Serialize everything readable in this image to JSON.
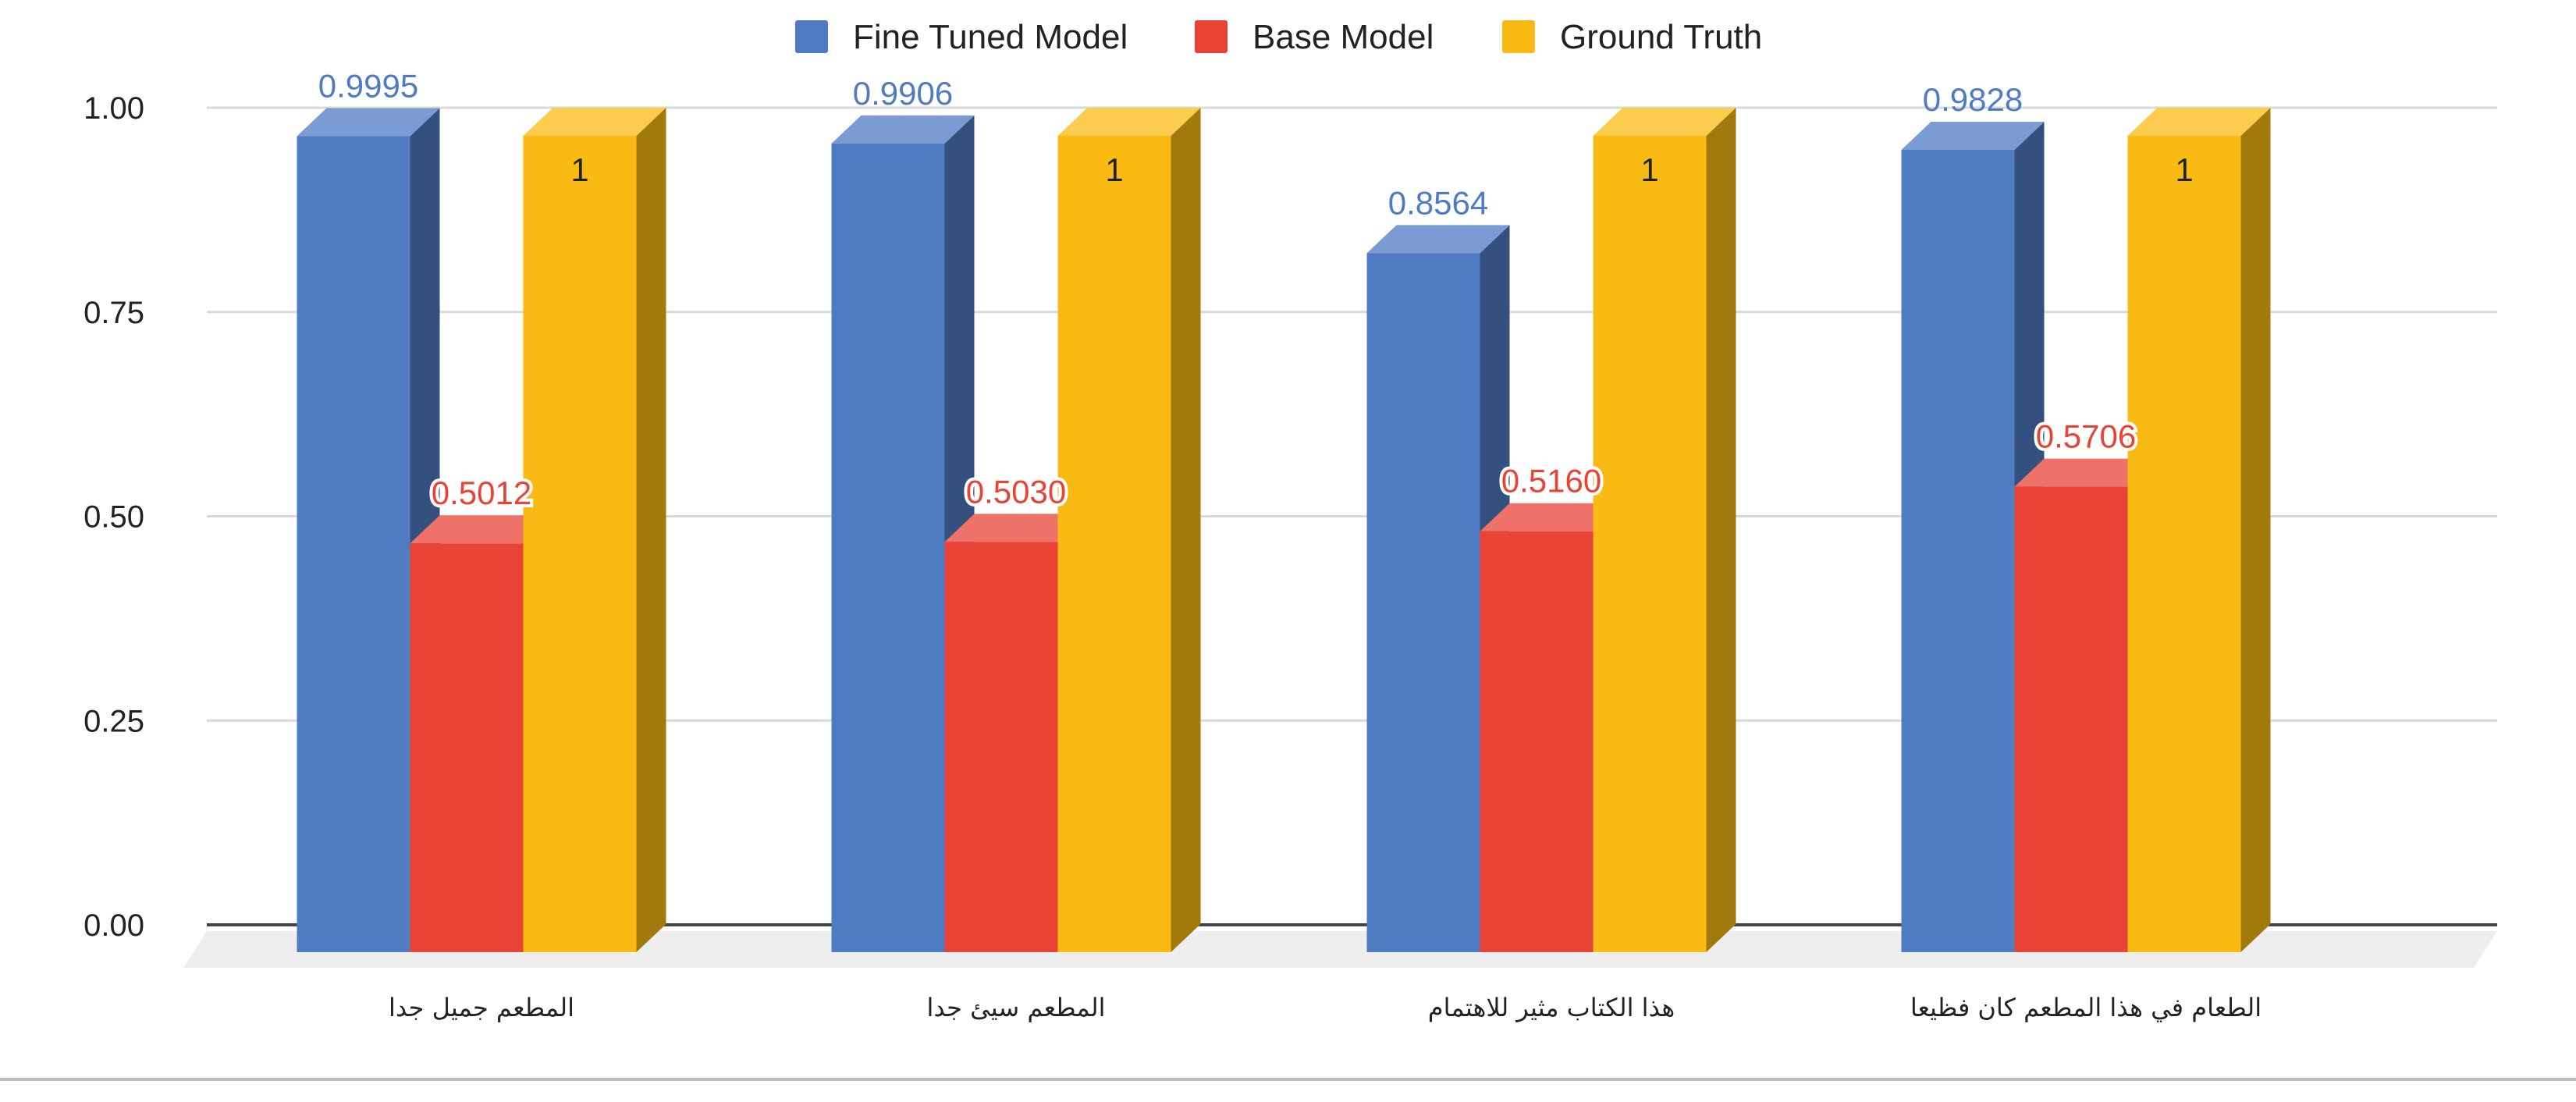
{
  "chart_data": {
    "type": "bar",
    "style": "3d-column",
    "title": "",
    "xlabel": "",
    "ylabel": "",
    "ylim": [
      0,
      1
    ],
    "yticks": [
      "0.00",
      "0.25",
      "0.50",
      "0.75",
      "1.00"
    ],
    "grid": true,
    "legend_position": "top",
    "categories": [
      "المطعم جميل جدا",
      "المطعم سيئ جدا",
      "هذا الكتاب مثير للاهتمام",
      "الطعام في هذا المطعم كان فظيعا"
    ],
    "series": [
      {
        "name": "Fine Tuned Model",
        "color": "#4F7BC3",
        "values": [
          0.9995,
          0.9906,
          0.8564,
          0.9828
        ],
        "labels": [
          "0.9995",
          "0.9906",
          "0.8564",
          "0.9828"
        ]
      },
      {
        "name": "Base Model",
        "color": "#E84335",
        "values": [
          0.5012,
          0.503,
          0.516,
          0.5706
        ],
        "labels": [
          "0.5012",
          "0.5030",
          "0.5160",
          "0.5706"
        ]
      },
      {
        "name": "Ground Truth",
        "color": "#F9BB13",
        "values": [
          1,
          1,
          1,
          1
        ],
        "labels": [
          "1",
          "1",
          "1",
          "1"
        ]
      }
    ]
  }
}
